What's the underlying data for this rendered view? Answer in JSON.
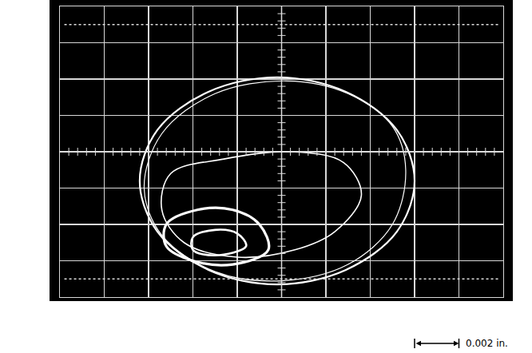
{
  "chart_data": {
    "type": "line",
    "xlim": [
      -0.01,
      0.01
    ],
    "ylim": [
      -0.008,
      0.008
    ],
    "xticks": [
      -0.01,
      -0.008,
      -0.006,
      -0.004,
      -0.002,
      0,
      0.002,
      0.004,
      0.006,
      0.008,
      0.01
    ],
    "yticks": [
      -0.008,
      -0.006,
      -0.004,
      -0.002,
      0,
      0.002,
      0.004,
      0.006,
      0.008
    ],
    "grid": true,
    "tick_labels": false,
    "scale_bar": {
      "value": 0.002,
      "label": "0.002 in."
    },
    "series": [
      {
        "color": "#ffffff",
        "x": [
          0.006,
          0.0052,
          0.0029,
          -0.0002,
          -0.0033,
          -0.0056,
          -0.0064,
          -0.0056,
          -0.0033,
          -0.0002,
          0.0029,
          0.0052,
          0.006
        ],
        "values": [
          -0.0016,
          0.0012,
          0.0033,
          0.0041,
          0.0033,
          0.0012,
          -0.0016,
          -0.0044,
          -0.0065,
          -0.0073,
          -0.0065,
          -0.0044,
          -0.0016
        ]
      },
      {
        "color": "#ffffff",
        "x": [
          0.0056,
          0.005,
          0.003,
          0.0002,
          -0.003,
          -0.0054,
          -0.0062,
          -0.0054,
          -0.003,
          0,
          0.003,
          0.005,
          0.0056
        ],
        "values": [
          -0.001,
          0.0014,
          0.0032,
          0.0039,
          0.0032,
          0.001,
          -0.002,
          -0.0046,
          -0.0066,
          -0.0071,
          -0.0062,
          -0.004,
          -0.001
        ]
      },
      {
        "color": "#ffffff",
        "x": [
          0.0036,
          0.0028,
          0.0004,
          -0.0026,
          -0.005,
          -0.0054,
          -0.0044,
          -0.002,
          0.0006,
          0.0024,
          0.0036
        ],
        "values": [
          -0.0024,
          -0.0006,
          0,
          -0.0004,
          -0.0012,
          -0.0032,
          -0.005,
          -0.0058,
          -0.0054,
          -0.0044,
          -0.0024
        ]
      },
      {
        "color": "#ffffff",
        "x": [
          -0.0006,
          -0.001,
          -0.0022,
          -0.0038,
          -0.0052,
          -0.0052,
          -0.004,
          -0.0022,
          -0.0006
        ],
        "values": [
          -0.0054,
          -0.004,
          -0.0032,
          -0.0032,
          -0.004,
          -0.0052,
          -0.006,
          -0.0062,
          -0.0054
        ]
      },
      {
        "color": "#ffffff",
        "x": [
          -0.0016,
          -0.002,
          -0.003,
          -0.004,
          -0.004,
          -0.003,
          -0.0016
        ],
        "values": [
          -0.0052,
          -0.0045,
          -0.0043,
          -0.0047,
          -0.0054,
          -0.0057,
          -0.0052
        ]
      }
    ]
  }
}
